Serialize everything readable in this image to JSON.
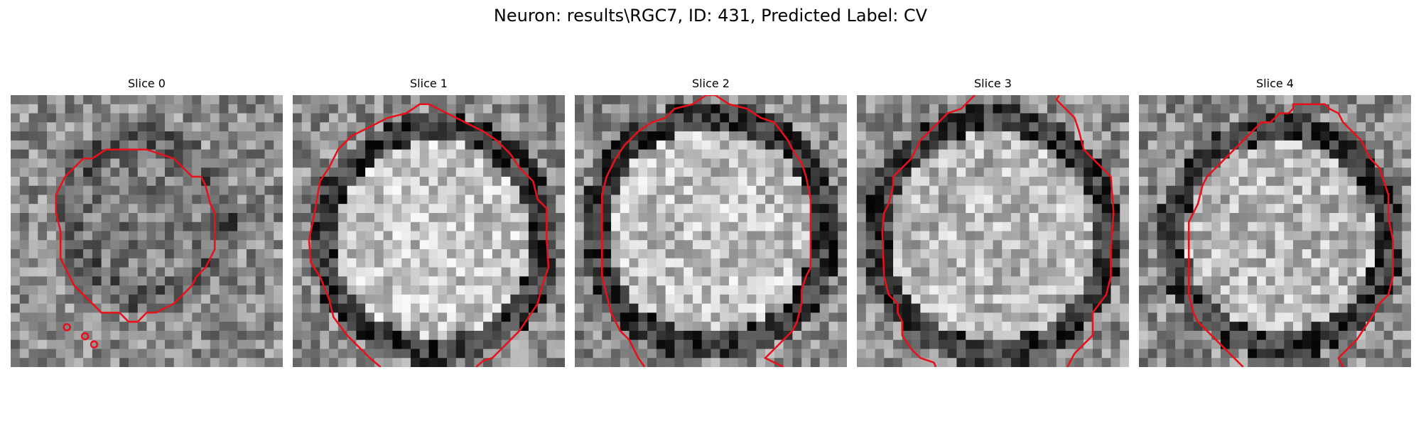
{
  "figure": {
    "title": "Neuron: results\\RGC7, ID: 431, Predicted Label: CV"
  },
  "panels": [
    {
      "title": "Slice 0",
      "seed": 11,
      "cell_radius": 0.29,
      "cell_center": [
        0.49,
        0.45
      ],
      "ring_brightness": 0.35,
      "interior_brightness": 0.48
    },
    {
      "title": "Slice 1",
      "seed": 23,
      "cell_radius": 0.41,
      "cell_center": [
        0.52,
        0.53
      ],
      "ring_brightness": 0.22,
      "interior_brightness": 0.78
    },
    {
      "title": "Slice 2",
      "seed": 37,
      "cell_radius": 0.43,
      "cell_center": [
        0.5,
        0.5
      ],
      "ring_brightness": 0.2,
      "interior_brightness": 0.75
    },
    {
      "title": "Slice 3",
      "seed": 51,
      "cell_radius": 0.43,
      "cell_center": [
        0.5,
        0.52
      ],
      "ring_brightness": 0.22,
      "interior_brightness": 0.72
    },
    {
      "title": "Slice 4",
      "seed": 67,
      "cell_radius": 0.4,
      "cell_center": [
        0.52,
        0.52
      ],
      "ring_brightness": 0.22,
      "interior_brightness": 0.72
    }
  ],
  "colors": {
    "contour": "#e8111b",
    "background": "#ffffff"
  },
  "icons": {
    "panel_image": "grayscale-microscopy-slice"
  }
}
